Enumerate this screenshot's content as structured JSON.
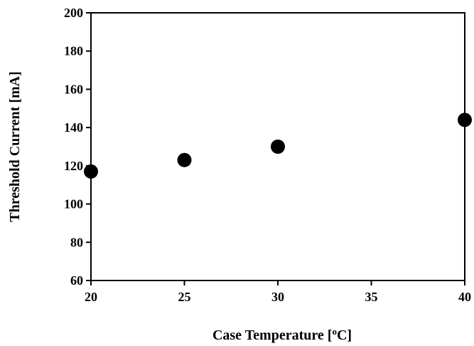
{
  "chart_data": {
    "type": "scatter",
    "title": "",
    "xlabel": "Case Temperature [",
    "xlabel_sup": "o",
    "xlabel_tail": "C]",
    "ylabel": "Threshold Current [mA]",
    "xlim": [
      20,
      40
    ],
    "ylim": [
      60,
      200
    ],
    "xticks": [
      20,
      25,
      30,
      35,
      40
    ],
    "yticks": [
      60,
      80,
      100,
      120,
      140,
      160,
      180,
      200
    ],
    "grid": false,
    "legend": "none",
    "series": [
      {
        "color": "#000000",
        "marker": "circle",
        "points": [
          {
            "x": 20,
            "y": 117
          },
          {
            "x": 25,
            "y": 123
          },
          {
            "x": 30,
            "y": 130
          },
          {
            "x": 40,
            "y": 144
          }
        ]
      }
    ]
  }
}
